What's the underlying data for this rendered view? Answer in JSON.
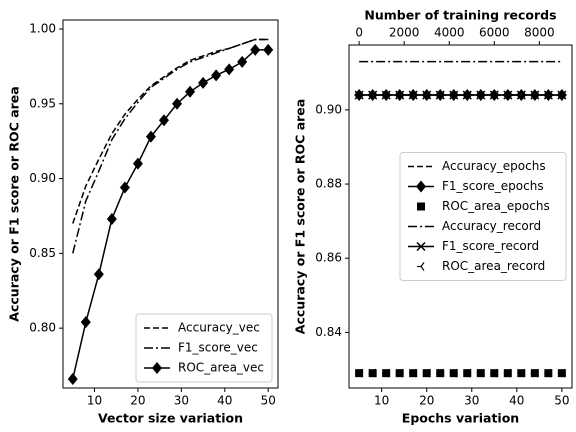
{
  "chart_data": [
    {
      "type": "line",
      "xlabel": "Vector size variation",
      "ylabel": "Accuracy or F1 score or ROC area",
      "x": [
        5,
        8,
        11,
        14,
        17,
        20,
        23,
        26,
        29,
        32,
        35,
        38,
        41,
        44,
        47,
        50
      ],
      "xlim": [
        2.75,
        52.25
      ],
      "xticks": [
        10,
        20,
        30,
        40,
        50
      ],
      "ylim": [
        0.76,
        1.006
      ],
      "yticks": [
        {
          "value": 0.8,
          "label": "0.80"
        },
        0.85,
        {
          "value": 0.9,
          "label": "0.90"
        },
        0.95,
        {
          "value": 1.0,
          "label": "1.00"
        }
      ],
      "legend": "lower right",
      "series": [
        {
          "name": "Accuracy_vec",
          "color": "#000000",
          "dash": "dashed",
          "marker": "none",
          "values": [
            0.87,
            0.895,
            0.913,
            0.93,
            0.943,
            0.953,
            0.962,
            0.968,
            0.974,
            0.979,
            0.982,
            0.985,
            0.987,
            0.99,
            0.993,
            0.993
          ]
        },
        {
          "name": "F1_score_vec",
          "color": "#000000",
          "dash": "dashdot",
          "marker": "none",
          "values": [
            0.85,
            0.885,
            0.905,
            0.926,
            0.94,
            0.951,
            0.961,
            0.967,
            0.973,
            0.978,
            0.981,
            0.984,
            0.987,
            0.99,
            0.993,
            0.993
          ]
        },
        {
          "name": "ROC_area_vec",
          "color": "#000000",
          "dash": "solid",
          "marker": "diamond",
          "values": [
            0.766,
            0.804,
            0.836,
            0.873,
            0.894,
            0.91,
            0.928,
            0.939,
            0.95,
            0.958,
            0.964,
            0.969,
            0.973,
            0.978,
            0.986,
            0.986
          ]
        }
      ]
    },
    {
      "type": "line",
      "xlabel": "Epochs variation",
      "ylabel": "Accuracy or F1 score or ROC area",
      "x2label": "Number of training records",
      "x": [
        5,
        8,
        11,
        14,
        17,
        20,
        23,
        26,
        29,
        32,
        35,
        38,
        41,
        44,
        47,
        50
      ],
      "xlim": [
        2.75,
        52.25
      ],
      "xticks": [
        10,
        20,
        30,
        40,
        50
      ],
      "x2": [
        0,
        600,
        1200,
        1800,
        2400,
        3000,
        3600,
        4200,
        4800,
        5400,
        6000,
        6600,
        7200,
        7800,
        8400,
        9000
      ],
      "x2lim": [
        -450,
        9450
      ],
      "x2ticks": [
        0,
        2000,
        4000,
        6000,
        8000
      ],
      "ylim": [
        0.825,
        0.9175
      ],
      "yticks": [
        0.84,
        0.86,
        0.88,
        {
          "value": 0.9,
          "label": "0.90"
        }
      ],
      "legend": "center right",
      "series": [
        {
          "name": "Accuracy_epochs",
          "color": "#000000",
          "dash": "dashed",
          "marker": "none",
          "values": [
            0.904,
            0.904,
            0.904,
            0.904,
            0.904,
            0.904,
            0.904,
            0.904,
            0.904,
            0.904,
            0.904,
            0.904,
            0.904,
            0.904,
            0.904,
            0.904
          ]
        },
        {
          "name": "F1_score_epochs",
          "color": "#000000",
          "dash": "solid",
          "marker": "diamond",
          "values": [
            0.904,
            0.904,
            0.904,
            0.904,
            0.904,
            0.904,
            0.904,
            0.904,
            0.904,
            0.904,
            0.904,
            0.904,
            0.904,
            0.904,
            0.904,
            0.904
          ]
        },
        {
          "name": "ROC_area_epochs",
          "color": "#000000",
          "dash": "none",
          "marker": "square",
          "values": [
            0.829,
            0.829,
            0.829,
            0.829,
            0.829,
            0.829,
            0.829,
            0.829,
            0.829,
            0.829,
            0.829,
            0.829,
            0.829,
            0.829,
            0.829,
            0.829
          ]
        },
        {
          "name": "Accuracy_record",
          "color": "#000000",
          "dash": "dashdot",
          "marker": "none",
          "axis": "x2",
          "values": [
            0.913,
            0.913,
            0.913,
            0.913,
            0.913,
            0.913,
            0.913,
            0.913,
            0.913,
            0.913,
            0.913,
            0.913,
            0.913,
            0.913,
            0.913,
            0.913
          ]
        },
        {
          "name": "F1_score_record",
          "color": "#000000",
          "dash": "solid",
          "marker": "x",
          "axis": "x2",
          "values": [
            0.904,
            0.904,
            0.904,
            0.904,
            0.904,
            0.904,
            0.904,
            0.904,
            0.904,
            0.904,
            0.904,
            0.904,
            0.904,
            0.904,
            0.904,
            0.904
          ]
        },
        {
          "name": "ROC_area_record",
          "color": "#000000",
          "dash": "none",
          "marker": "tri-left",
          "axis": "x2",
          "values": [
            0.829,
            0.829,
            0.829,
            0.829,
            0.829,
            0.829,
            0.829,
            0.829,
            0.829,
            0.829,
            0.829,
            0.829,
            0.829,
            0.829,
            0.829,
            0.829
          ]
        }
      ]
    }
  ]
}
